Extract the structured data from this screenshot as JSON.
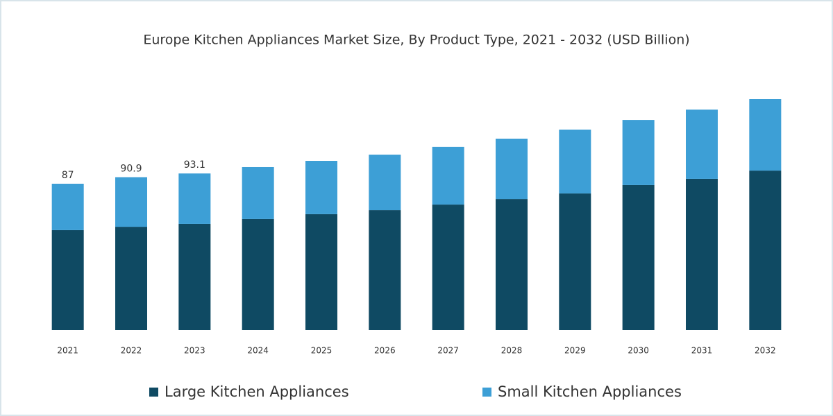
{
  "chart_data": {
    "type": "stacked_bar",
    "title": "Europe Kitchen Appliances Market Size, By Product Type, 2021 - 2032 (USD Billion)",
    "categories": [
      "2021",
      "2022",
      "2023",
      "2024",
      "2025",
      "2026",
      "2027",
      "2028",
      "2029",
      "2030",
      "2031",
      "2032"
    ],
    "series": [
      {
        "name": "Large Kitchen Appliances",
        "color": "#0f4a63",
        "values": [
          59.4,
          61.4,
          63.1,
          66.0,
          68.9,
          71.3,
          74.6,
          77.9,
          81.2,
          86.2,
          89.9,
          94.8
        ]
      },
      {
        "name": "Small Kitchen Appliances",
        "color": "#3d9fd6",
        "values": [
          27.6,
          29.5,
          30.0,
          30.9,
          31.7,
          33.0,
          34.3,
          35.9,
          38.0,
          38.7,
          41.2,
          42.5
        ]
      }
    ],
    "totals": [
      87,
      90.9,
      93.1,
      null,
      null,
      null,
      null,
      null,
      null,
      null,
      null,
      null
    ]
  }
}
